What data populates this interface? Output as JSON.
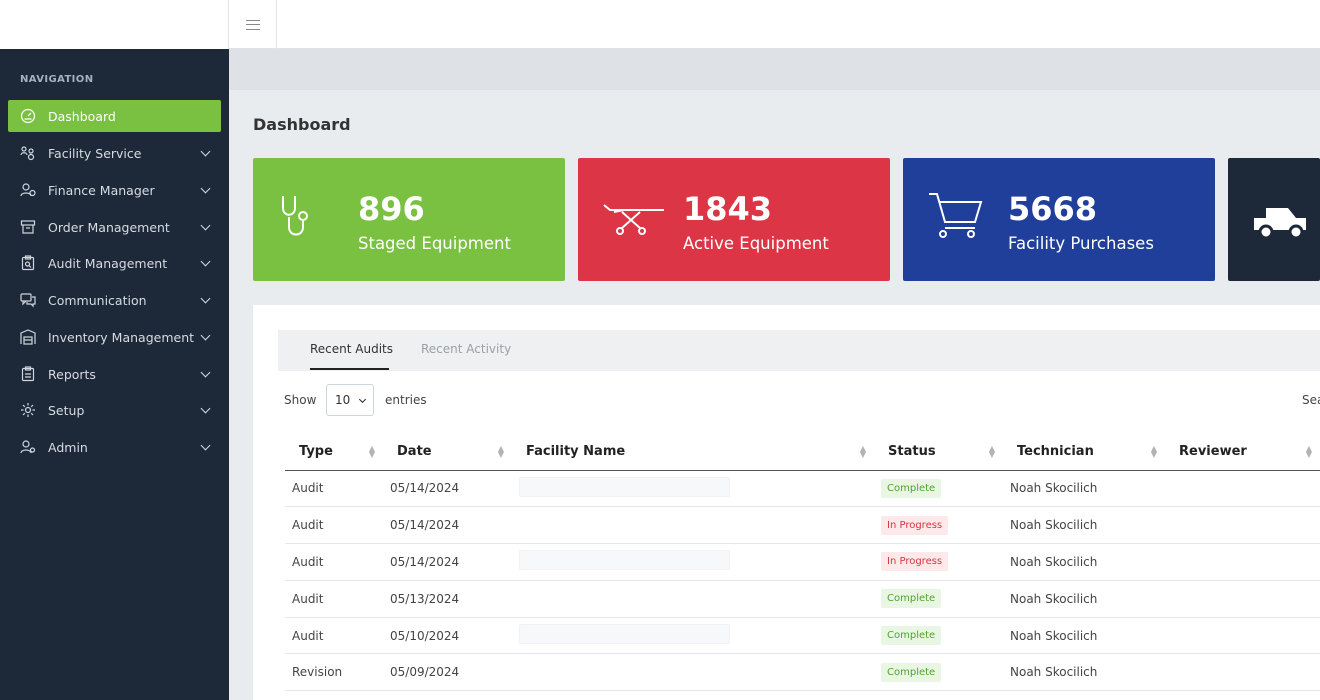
{
  "navigation": {
    "heading": "NAVIGATION",
    "items": [
      {
        "label": "Dashboard",
        "icon": "speedometer-icon",
        "active": true
      },
      {
        "label": "Facility Service",
        "icon": "people-gear-icon"
      },
      {
        "label": "Finance Manager",
        "icon": "user-dollar-icon"
      },
      {
        "label": "Order Management",
        "icon": "cart-box-icon"
      },
      {
        "label": "Audit Management",
        "icon": "clipboard-search-icon"
      },
      {
        "label": "Communication",
        "icon": "chat-bubbles-icon"
      },
      {
        "label": "Inventory Management",
        "icon": "warehouse-icon"
      },
      {
        "label": "Reports",
        "icon": "clipboard-icon"
      },
      {
        "label": "Setup",
        "icon": "gear-icon"
      },
      {
        "label": "Admin",
        "icon": "user-gear-icon"
      }
    ]
  },
  "page": {
    "title": "Dashboard"
  },
  "stats": [
    {
      "value": "896",
      "label": "Staged Equipment",
      "color": "#7ac142",
      "icon": "stethoscope-icon"
    },
    {
      "value": "1843",
      "label": "Active Equipment",
      "color": "#dc3545",
      "icon": "stretcher-icon"
    },
    {
      "value": "5668",
      "label": "Facility Purchases",
      "color": "#1f3f9a",
      "icon": "shopping-cart-icon"
    },
    {
      "value": "",
      "label": "",
      "color": "#1d2939",
      "icon": "truck-icon"
    }
  ],
  "tabs": {
    "recent_audits": "Recent Audits",
    "recent_activity": "Recent Activity"
  },
  "table_controls": {
    "show": "Show",
    "entries_value": "10",
    "entries": "entries",
    "search": "Sea"
  },
  "table": {
    "columns": [
      "Type",
      "Date",
      "Facility Name",
      "Status",
      "Technician",
      "Reviewer"
    ],
    "rows": [
      {
        "type": "Audit",
        "date": "05/14/2024",
        "facility": "",
        "status": "Complete",
        "technician": "Noah Skocilich",
        "reviewer": ""
      },
      {
        "type": "Audit",
        "date": "05/14/2024",
        "facility": "",
        "status": "In Progress",
        "technician": "Noah Skocilich",
        "reviewer": ""
      },
      {
        "type": "Audit",
        "date": "05/14/2024",
        "facility": "",
        "status": "In Progress",
        "technician": "Noah Skocilich",
        "reviewer": ""
      },
      {
        "type": "Audit",
        "date": "05/13/2024",
        "facility": "",
        "status": "Complete",
        "technician": "Noah Skocilich",
        "reviewer": ""
      },
      {
        "type": "Audit",
        "date": "05/10/2024",
        "facility": "",
        "status": "Complete",
        "technician": "Noah Skocilich",
        "reviewer": ""
      },
      {
        "type": "Revision",
        "date": "05/09/2024",
        "facility": "",
        "status": "Complete",
        "technician": "Noah Skocilich",
        "reviewer": ""
      }
    ]
  },
  "colors": {
    "accent": "#7ac142",
    "sidebar": "#1d2939",
    "complete": "#4ea52e",
    "in_progress": "#d7353f"
  }
}
